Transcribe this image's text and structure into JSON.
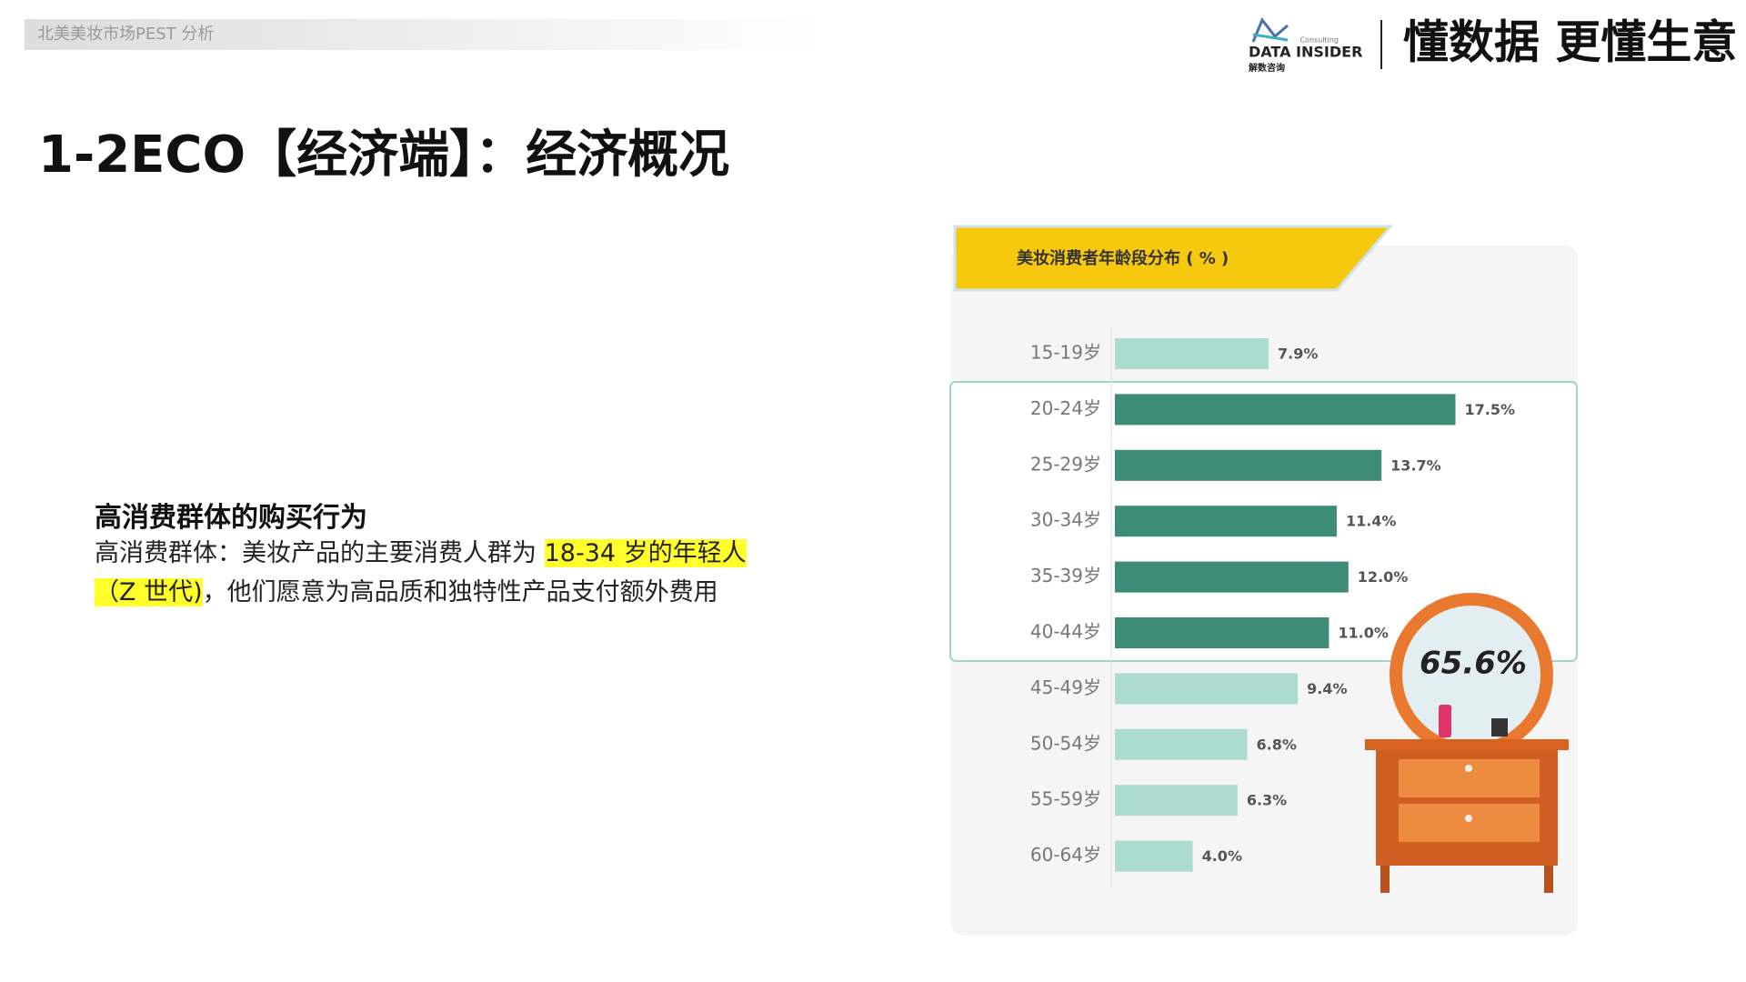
{
  "header": {
    "breadcrumb": "北美美妆市场PEST 分析",
    "logo": "DATA INSIDER",
    "logo_sub": "Consulting",
    "logo_cn": "解数咨询",
    "slogan": "懂数据 更懂生意"
  },
  "title": "1-2ECO【经济端】：经济概况",
  "section": {
    "heading": "高消费群体的购买行为",
    "body": [
      "高消费群体：美妆产品的主要消费人群为 ",
      "18-34 岁的年轻人（Z 世代)",
      "，他们愿意为高品质和独特性产品支付额外费用"
    ]
  },
  "chart_data": {
    "type": "hbar",
    "title": "美妆消费者年龄段分布 ( % )",
    "categories": [
      "15-19岁",
      "20-24岁",
      "25-29岁",
      "30-34岁",
      "35-39岁",
      "40-44岁",
      "45-49岁",
      "50-54岁",
      "55-59岁",
      "60-64岁"
    ],
    "values": [
      7.9,
      17.5,
      13.7,
      11.4,
      12.0,
      11.0,
      9.4,
      6.8,
      6.3,
      4.0
    ],
    "value_labels": [
      "7.9%",
      "17.5%",
      "13.7%",
      "11.4%",
      "12.0%",
      "11.0%",
      "9.4%",
      "6.8%",
      "6.3%",
      "4.0%"
    ],
    "colors": [
      "#abdccf",
      "#3d8c78",
      "#3d8c78",
      "#3d8c78",
      "#3d8c78",
      "#3d8c78",
      "#abdccf",
      "#abdccf",
      "#abdccf",
      "#abdccf"
    ],
    "annotation": "65.6%"
  }
}
